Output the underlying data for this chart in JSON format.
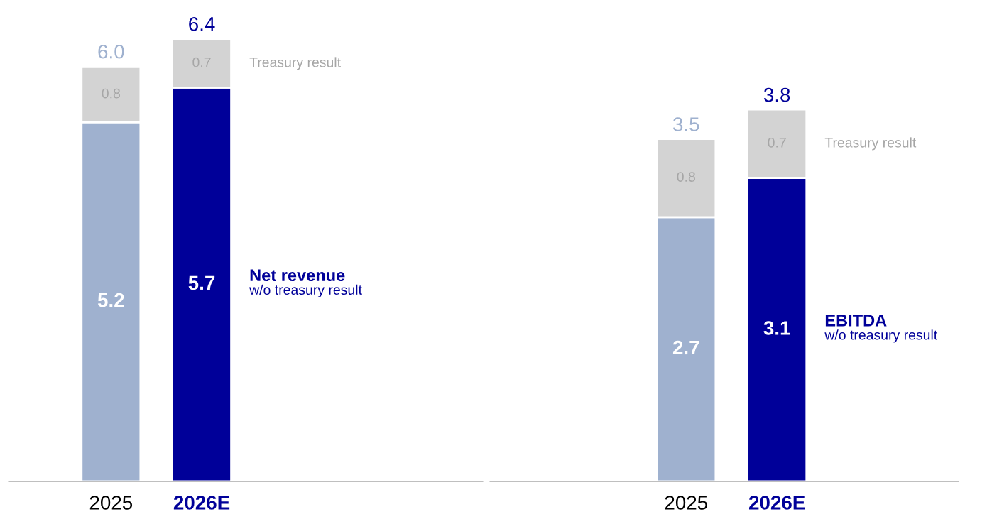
{
  "chart_data": [
    {
      "type": "bar",
      "stacked": true,
      "data_labels": true,
      "categories": [
        "2025",
        "2026E"
      ],
      "annotations": [
        "w/o treasury result"
      ],
      "totals": [
        "6.0",
        "6.4"
      ],
      "series": [
        {
          "name": "Net revenue",
          "colors": [
            "#9fb1cf",
            "#000099"
          ],
          "values": [
            5.2,
            5.7
          ]
        },
        {
          "name": "Treasury result",
          "color": "#d3d3d3",
          "values": [
            0.8,
            0.7
          ]
        }
      ]
    },
    {
      "type": "bar",
      "stacked": true,
      "data_labels": true,
      "categories": [
        "2025",
        "2026E"
      ],
      "annotations": [
        "w/o treasury result"
      ],
      "totals": [
        "3.5",
        "3.8"
      ],
      "series": [
        {
          "name": "EBITDA",
          "colors": [
            "#9fb1cf",
            "#000099"
          ],
          "values": [
            2.7,
            3.1
          ]
        },
        {
          "name": "Treasury result",
          "color": "#d3d3d3",
          "values": [
            0.8,
            0.7
          ]
        }
      ]
    }
  ]
}
